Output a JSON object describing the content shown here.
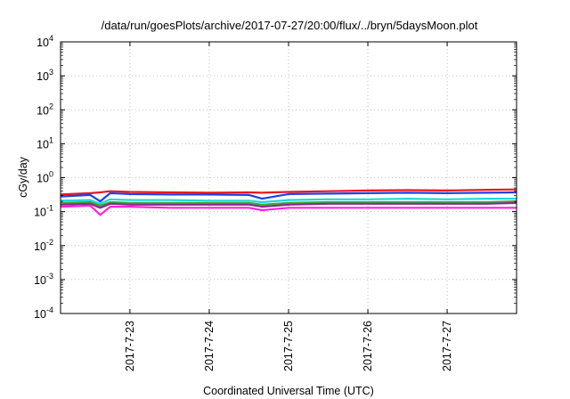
{
  "chart_data": {
    "type": "line",
    "title": "/data/run/goesPlots/archive/2017-07-27/20:00/flux/../bryn/5daysMoon.plot",
    "xlabel": "Coordinated Universal Time (UTC)",
    "ylabel": "cGy/day",
    "yscale": "log",
    "ylim": [
      0.0001,
      10000
    ],
    "xlim": [
      "2017-07-22 03:00",
      "2017-07-27 21:00"
    ],
    "grid": true,
    "legend": "none",
    "y_ticks": [
      {
        "base": "10",
        "exp": "-4",
        "value": 0.0001
      },
      {
        "base": "10",
        "exp": "-3",
        "value": 0.001
      },
      {
        "base": "10",
        "exp": "-2",
        "value": 0.01
      },
      {
        "base": "10",
        "exp": "-1",
        "value": 0.1
      },
      {
        "base": "10",
        "exp": "0",
        "value": 1
      },
      {
        "base": "10",
        "exp": "1",
        "value": 10
      },
      {
        "base": "10",
        "exp": "2",
        "value": 100
      },
      {
        "base": "10",
        "exp": "3",
        "value": 1000
      },
      {
        "base": "10",
        "exp": "4",
        "value": 10000
      }
    ],
    "x_ticks": [
      {
        "label": "2017-7-23",
        "value": "2017-07-23 00:00"
      },
      {
        "label": "2017-7-24",
        "value": "2017-07-24 00:00"
      },
      {
        "label": "2017-7-25",
        "value": "2017-07-25 00:00"
      },
      {
        "label": "2017-7-26",
        "value": "2017-07-26 00:00"
      },
      {
        "label": "2017-7-27",
        "value": "2017-07-27 00:00"
      }
    ],
    "x": [
      "2017-07-22 03:00",
      "2017-07-22 12:00",
      "2017-07-22 15:00",
      "2017-07-22 18:00",
      "2017-07-23 00:00",
      "2017-07-23 12:00",
      "2017-07-24 00:00",
      "2017-07-24 12:00",
      "2017-07-24 16:00",
      "2017-07-25 00:00",
      "2017-07-25 12:00",
      "2017-07-26 00:00",
      "2017-07-26 12:00",
      "2017-07-27 00:00",
      "2017-07-27 12:00",
      "2017-07-27 21:00"
    ],
    "series": [
      {
        "color": "#e8171f",
        "values": [
          0.32,
          0.35,
          0.37,
          0.4,
          0.38,
          0.37,
          0.36,
          0.37,
          0.36,
          0.38,
          0.4,
          0.42,
          0.43,
          0.42,
          0.44,
          0.45
        ]
      },
      {
        "color": "#1f3fe8",
        "values": [
          0.28,
          0.31,
          0.2,
          0.35,
          0.33,
          0.32,
          0.32,
          0.31,
          0.24,
          0.33,
          0.34,
          0.35,
          0.36,
          0.35,
          0.36,
          0.37
        ]
      },
      {
        "color": "#1fd8d8",
        "values": [
          0.21,
          0.22,
          0.17,
          0.23,
          0.22,
          0.22,
          0.21,
          0.21,
          0.19,
          0.22,
          0.23,
          0.23,
          0.24,
          0.23,
          0.24,
          0.24
        ]
      },
      {
        "color": "#3aa63a",
        "values": [
          0.18,
          0.19,
          0.15,
          0.19,
          0.18,
          0.18,
          0.18,
          0.18,
          0.16,
          0.18,
          0.19,
          0.19,
          0.19,
          0.19,
          0.19,
          0.2
        ]
      },
      {
        "color": "#8a2a8a",
        "values": [
          0.16,
          0.17,
          0.13,
          0.17,
          0.16,
          0.16,
          0.16,
          0.16,
          0.14,
          0.16,
          0.17,
          0.17,
          0.17,
          0.17,
          0.17,
          0.18
        ]
      },
      {
        "color": "#ff22dd",
        "values": [
          0.14,
          0.15,
          0.08,
          0.14,
          0.14,
          0.13,
          0.13,
          0.13,
          0.11,
          0.13,
          0.13,
          0.13,
          0.13,
          0.13,
          0.13,
          0.13
        ]
      }
    ]
  }
}
